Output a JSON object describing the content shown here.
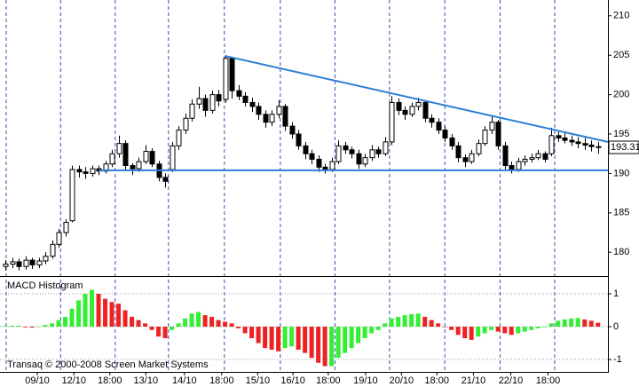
{
  "chart_data": {
    "type": "candlestick",
    "candles": [
      [
        178.2,
        179.0,
        177.7,
        178.5
      ],
      [
        178.5,
        179.3,
        178.0,
        178.8
      ],
      [
        178.8,
        179.2,
        177.7,
        178.2
      ],
      [
        178.2,
        179.5,
        177.8,
        179.0
      ],
      [
        179.0,
        179.3,
        177.9,
        178.4
      ],
      [
        178.4,
        179.3,
        178.0,
        178.9
      ],
      [
        178.9,
        180.0,
        178.5,
        179.5
      ],
      [
        179.5,
        181.5,
        179.2,
        181.0
      ],
      [
        181.0,
        183.0,
        180.6,
        182.5
      ],
      [
        182.5,
        184.2,
        182.0,
        183.8
      ],
      [
        184.0,
        191.0,
        183.8,
        190.5
      ],
      [
        190.5,
        191.0,
        189.5,
        190.2
      ],
      [
        190.2,
        190.8,
        189.3,
        190.0
      ],
      [
        190.0,
        191.0,
        189.6,
        190.6
      ],
      [
        190.6,
        191.0,
        189.8,
        190.3
      ],
      [
        190.3,
        191.6,
        190.0,
        191.2
      ],
      [
        191.2,
        193.0,
        190.8,
        192.5
      ],
      [
        192.5,
        194.8,
        192.0,
        193.8
      ],
      [
        193.8,
        194.2,
        190.5,
        191.0
      ],
      [
        191.0,
        191.3,
        189.8,
        190.6
      ],
      [
        190.6,
        192.0,
        190.2,
        191.5
      ],
      [
        191.5,
        193.6,
        191.2,
        192.8
      ],
      [
        192.8,
        193.2,
        190.8,
        191.2
      ],
      [
        191.2,
        191.6,
        189.0,
        189.5
      ],
      [
        189.5,
        190.0,
        188.2,
        189.0
      ],
      [
        190.5,
        194.0,
        190.2,
        193.5
      ],
      [
        193.5,
        196.0,
        193.0,
        195.5
      ],
      [
        195.5,
        197.6,
        195.0,
        197.0
      ],
      [
        197.0,
        199.4,
        196.6,
        198.8
      ],
      [
        198.8,
        201.0,
        198.2,
        199.5
      ],
      [
        199.5,
        200.0,
        197.2,
        198.0
      ],
      [
        198.0,
        200.5,
        197.6,
        200.0
      ],
      [
        200.0,
        200.6,
        198.5,
        199.2
      ],
      [
        199.4,
        205.0,
        199.0,
        204.6
      ],
      [
        204.6,
        204.8,
        199.5,
        200.5
      ],
      [
        200.5,
        201.2,
        199.3,
        199.8
      ],
      [
        199.8,
        200.3,
        198.5,
        199.0
      ],
      [
        199.0,
        199.6,
        197.8,
        198.5
      ],
      [
        198.5,
        199.0,
        196.8,
        197.5
      ],
      [
        197.5,
        198.0,
        195.8,
        196.5
      ],
      [
        196.5,
        198.0,
        196.0,
        197.5
      ],
      [
        197.5,
        199.3,
        197.0,
        198.5
      ],
      [
        198.5,
        198.8,
        195.4,
        196.0
      ],
      [
        196.0,
        196.5,
        194.4,
        195.0
      ],
      [
        195.0,
        195.5,
        193.0,
        193.5
      ],
      [
        193.5,
        194.0,
        191.8,
        192.5
      ],
      [
        192.5,
        193.0,
        191.2,
        191.8
      ],
      [
        191.8,
        192.3,
        190.2,
        190.8
      ],
      [
        190.8,
        191.2,
        190.0,
        190.5
      ],
      [
        190.5,
        192.0,
        190.2,
        191.5
      ],
      [
        191.5,
        194.2,
        191.2,
        193.5
      ],
      [
        193.5,
        194.0,
        192.5,
        193.0
      ],
      [
        193.0,
        193.4,
        191.9,
        192.5
      ],
      [
        192.5,
        193.0,
        190.6,
        191.2
      ],
      [
        191.2,
        192.5,
        190.8,
        192.0
      ],
      [
        192.0,
        193.6,
        191.6,
        193.0
      ],
      [
        193.0,
        193.4,
        192.0,
        192.5
      ],
      [
        192.5,
        194.6,
        192.2,
        194.0
      ],
      [
        194.0,
        199.8,
        193.6,
        199.0
      ],
      [
        199.0,
        199.5,
        197.4,
        198.0
      ],
      [
        198.0,
        198.5,
        196.8,
        197.5
      ],
      [
        197.5,
        199.0,
        197.2,
        198.5
      ],
      [
        198.5,
        199.6,
        198.0,
        199.0
      ],
      [
        199.0,
        199.3,
        196.5,
        197.0
      ],
      [
        197.0,
        197.5,
        195.8,
        196.5
      ],
      [
        196.5,
        197.0,
        195.0,
        195.5
      ],
      [
        195.5,
        196.0,
        194.0,
        194.5
      ],
      [
        194.5,
        195.0,
        193.0,
        193.5
      ],
      [
        193.5,
        194.0,
        191.4,
        192.0
      ],
      [
        192.0,
        192.4,
        190.8,
        191.5
      ],
      [
        191.5,
        193.0,
        191.2,
        192.5
      ],
      [
        192.5,
        194.3,
        192.2,
        193.8
      ],
      [
        193.8,
        196.0,
        193.5,
        195.5
      ],
      [
        195.5,
        197.2,
        195.0,
        196.5
      ],
      [
        196.5,
        196.8,
        193.0,
        193.5
      ],
      [
        193.5,
        194.0,
        190.5,
        191.0
      ],
      [
        191.0,
        191.5,
        190.0,
        190.5
      ],
      [
        190.5,
        192.0,
        190.2,
        191.5
      ],
      [
        191.5,
        192.3,
        191.0,
        191.8
      ],
      [
        191.8,
        192.5,
        191.4,
        192.0
      ],
      [
        192.0,
        193.0,
        191.7,
        192.5
      ],
      [
        192.5,
        192.8,
        191.4,
        191.8
      ],
      [
        192.5,
        195.8,
        192.2,
        194.8
      ],
      [
        194.8,
        195.5,
        194.0,
        194.5
      ],
      [
        194.5,
        195.2,
        193.8,
        194.2
      ],
      [
        194.2,
        194.8,
        193.5,
        194.0
      ],
      [
        194.0,
        194.6,
        193.2,
        193.8
      ],
      [
        193.8,
        194.5,
        193.0,
        193.6
      ],
      [
        193.6,
        194.2,
        192.8,
        193.4
      ],
      [
        193.4,
        194.0,
        192.5,
        193.31
      ]
    ],
    "up_color": "#ffffff",
    "down_color": "#000000",
    "xlim": [
      -0.8,
      90.5
    ],
    "ylim": [
      177.1,
      212
    ],
    "yticks": [
      180,
      185,
      190,
      195,
      200,
      205,
      210
    ],
    "xticks": [
      {
        "value": 4.8,
        "label": "09/10"
      },
      {
        "value": 10.3,
        "label": "12/10"
      },
      {
        "value": 15.7,
        "label": "18:00"
      },
      {
        "value": 21.1,
        "label": "13/10"
      },
      {
        "value": 26.9,
        "label": "14/10"
      },
      {
        "value": 32.5,
        "label": "18:00"
      },
      {
        "value": 37.9,
        "label": "15/10"
      },
      {
        "value": 43.2,
        "label": "16/10"
      },
      {
        "value": 48.5,
        "label": "18:00"
      },
      {
        "value": 54.1,
        "label": "19/10"
      },
      {
        "value": 59.5,
        "label": "20/10"
      },
      {
        "value": 64.8,
        "label": "18:00"
      },
      {
        "value": 70.3,
        "label": "21/10"
      },
      {
        "value": 75.9,
        "label": "22/10"
      },
      {
        "value": 81.5,
        "label": "18:00"
      }
    ],
    "xgrid": [
      0.13,
      8.3,
      16.5,
      24.5,
      32.9,
      41.3,
      49.5,
      57.7,
      66,
      74.3,
      82.5
    ],
    "trendlines": [
      {
        "x": [
          33,
          90.5
        ],
        "y": [
          204.9,
          194.0
        ]
      },
      {
        "x": [
          14,
          90.5
        ],
        "y": [
          190.4,
          190.4
        ]
      }
    ],
    "trendline_color": "#2a7fd4",
    "footer": "Transaq © 2000-2008 Screen Market Systems",
    "macd": {
      "title": "MACD Histogram",
      "values": [
        0.02,
        0.03,
        0.03,
        -0.02,
        -0.03,
        0.0,
        0.05,
        0.1,
        0.2,
        0.3,
        0.55,
        0.8,
        1.0,
        1.12,
        1.0,
        0.85,
        0.75,
        0.7,
        0.5,
        0.3,
        0.2,
        0.1,
        -0.1,
        -0.3,
        -0.35,
        -0.1,
        0.1,
        0.25,
        0.4,
        0.45,
        0.35,
        0.3,
        0.2,
        0.15,
        0.1,
        -0.05,
        -0.2,
        -0.35,
        -0.5,
        -0.65,
        -0.7,
        -0.75,
        -0.65,
        -0.6,
        -0.7,
        -0.8,
        -0.95,
        -1.1,
        -1.2,
        -1.2,
        -0.95,
        -0.8,
        -0.65,
        -0.5,
        -0.35,
        -0.2,
        -0.1,
        0.1,
        0.25,
        0.3,
        0.35,
        0.38,
        0.4,
        0.3,
        0.2,
        0.1,
        0.0,
        -0.1,
        -0.25,
        -0.35,
        -0.4,
        -0.3,
        -0.2,
        -0.1,
        -0.15,
        -0.2,
        -0.25,
        -0.2,
        -0.15,
        -0.1,
        -0.05,
        -0.02,
        0.1,
        0.18,
        0.22,
        0.25,
        0.26,
        0.22,
        0.18,
        0.12
      ],
      "up_color": "#33ee33",
      "down_color": "#ee2222",
      "ylim": [
        -1.35,
        1.46
      ],
      "yticks": [
        -1,
        0,
        1
      ]
    }
  }
}
